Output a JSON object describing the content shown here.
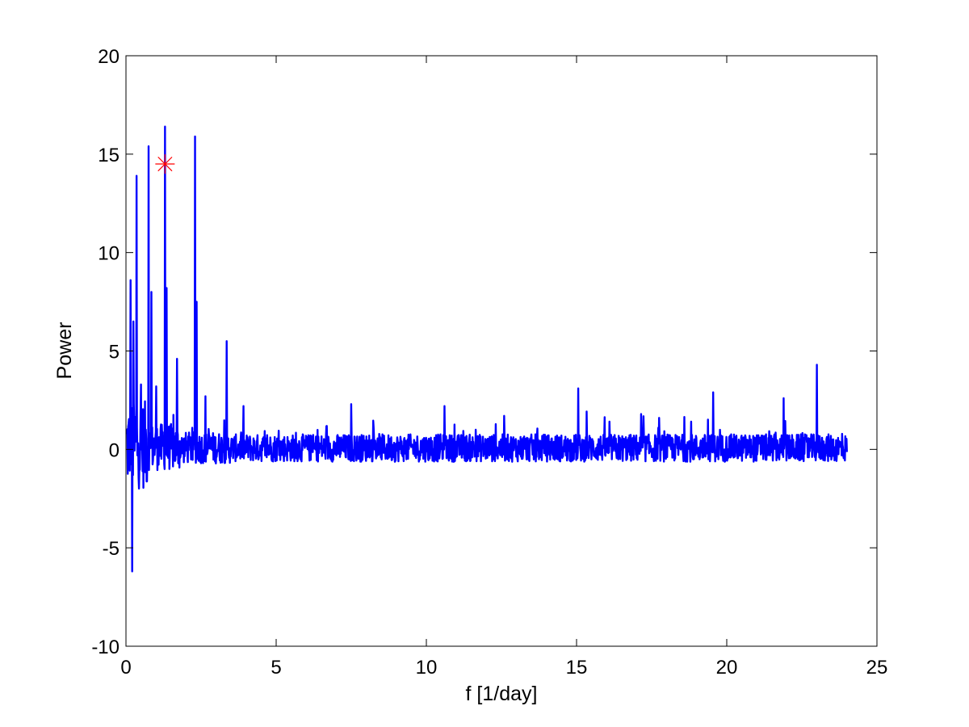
{
  "chart_data": {
    "type": "line",
    "title": "",
    "xlabel": "f [1/day]",
    "ylabel": "Power",
    "xlim": [
      0,
      25
    ],
    "ylim": [
      -10,
      20
    ],
    "xticks": [
      0,
      5,
      10,
      15,
      20,
      25
    ],
    "yticks": [
      -10,
      -5,
      0,
      5,
      10,
      15,
      20
    ],
    "grid": false,
    "legend": "none",
    "series_color": "#0000ff",
    "marker_color": "#ff0000",
    "series": [
      {
        "values_description": "spectrum power vs frequency, x from 0.02 to 24.0",
        "x_range": [
          0.02,
          24.0
        ],
        "noise_amplitude": 0.7,
        "peaks": [
          {
            "x": 0.15,
            "y": 8.6
          },
          {
            "x": 0.2,
            "y": -6.2
          },
          {
            "x": 0.25,
            "y": 6.5
          },
          {
            "x": 0.35,
            "y": 13.9
          },
          {
            "x": 0.5,
            "y": 3.3
          },
          {
            "x": 0.75,
            "y": 15.4
          },
          {
            "x": 0.85,
            "y": 8.0
          },
          {
            "x": 1.0,
            "y": 3.2
          },
          {
            "x": 1.3,
            "y": 16.4
          },
          {
            "x": 1.35,
            "y": 8.2
          },
          {
            "x": 1.7,
            "y": 4.6
          },
          {
            "x": 2.3,
            "y": 15.9
          },
          {
            "x": 2.35,
            "y": 7.5
          },
          {
            "x": 2.65,
            "y": 2.7
          },
          {
            "x": 3.35,
            "y": 5.5
          },
          {
            "x": 7.5,
            "y": 2.3
          },
          {
            "x": 10.6,
            "y": 2.2
          },
          {
            "x": 15.05,
            "y": 3.1
          },
          {
            "x": 19.55,
            "y": 2.9
          },
          {
            "x": 21.9,
            "y": 2.6
          },
          {
            "x": 23.0,
            "y": 4.3
          }
        ]
      }
    ],
    "marker": {
      "x": 1.3,
      "y": 14.5,
      "symbol": "asterisk"
    }
  }
}
